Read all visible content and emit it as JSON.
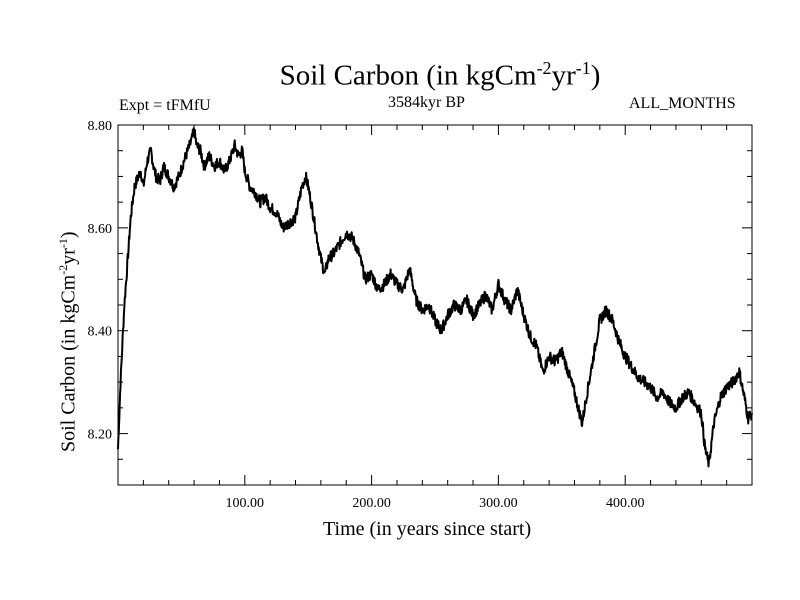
{
  "header": {
    "title_main": "Soil Carbon (in kgCm",
    "title_exp1": "-2",
    "title_mid": "yr",
    "title_exp2": "-1",
    "title_end": ")",
    "experiment": "Expt = tFMfU",
    "subtitle": "3584kyr BP",
    "months": "ALL_MONTHS"
  },
  "axes": {
    "xlabel": "Time (in years since start)",
    "ylabel_main": "Soil Carbon (in kgCm",
    "ylabel_exp1": "-2",
    "ylabel_mid": "yr",
    "ylabel_exp2": "-1",
    "ylabel_end": ")"
  },
  "chart_data": {
    "type": "line",
    "title": "Soil Carbon (in kgCm-2yr-1)",
    "xlabel": "Time (in years since start)",
    "ylabel": "Soil Carbon (in kgCm-2yr-1)",
    "xlim": [
      0,
      500
    ],
    "ylim": [
      8.1,
      8.8
    ],
    "xticks": [
      100,
      200,
      300,
      400
    ],
    "xtick_labels": [
      "100.00",
      "200.00",
      "300.00",
      "400.00"
    ],
    "yticks": [
      8.2,
      8.4,
      8.6,
      8.8
    ],
    "ytick_labels": [
      "8.20",
      "8.40",
      "8.60",
      "8.80"
    ],
    "series": [
      {
        "name": "Soil Carbon",
        "x": [
          0,
          2,
          5,
          8,
          10,
          13,
          16,
          18,
          20,
          23,
          26,
          28,
          30,
          33,
          36,
          40,
          44,
          48,
          52,
          55,
          58,
          60,
          62,
          65,
          68,
          72,
          76,
          80,
          84,
          88,
          92,
          95,
          98,
          100,
          104,
          108,
          112,
          116,
          120,
          125,
          130,
          135,
          140,
          145,
          148,
          150,
          153,
          157,
          160,
          163,
          166,
          170,
          175,
          180,
          185,
          190,
          195,
          200,
          205,
          210,
          215,
          220,
          225,
          230,
          235,
          240,
          245,
          250,
          255,
          260,
          265,
          270,
          275,
          280,
          285,
          290,
          295,
          300,
          305,
          310,
          315,
          320,
          325,
          330,
          335,
          340,
          345,
          350,
          355,
          360,
          363,
          366,
          370,
          375,
          380,
          385,
          390,
          395,
          400,
          405,
          410,
          415,
          420,
          425,
          430,
          435,
          440,
          445,
          450,
          455,
          460,
          463,
          466,
          470,
          475,
          480,
          485,
          490,
          494,
          497,
          500
        ],
        "values": [
          8.17,
          8.3,
          8.45,
          8.55,
          8.62,
          8.68,
          8.7,
          8.71,
          8.68,
          8.73,
          8.75,
          8.72,
          8.7,
          8.69,
          8.72,
          8.7,
          8.68,
          8.7,
          8.73,
          8.75,
          8.77,
          8.79,
          8.76,
          8.75,
          8.72,
          8.74,
          8.72,
          8.73,
          8.71,
          8.73,
          8.76,
          8.74,
          8.75,
          8.71,
          8.68,
          8.67,
          8.65,
          8.66,
          8.64,
          8.63,
          8.6,
          8.61,
          8.62,
          8.68,
          8.7,
          8.68,
          8.64,
          8.58,
          8.54,
          8.51,
          8.54,
          8.55,
          8.57,
          8.59,
          8.58,
          8.55,
          8.5,
          8.51,
          8.48,
          8.49,
          8.51,
          8.49,
          8.48,
          8.52,
          8.46,
          8.44,
          8.45,
          8.42,
          8.4,
          8.43,
          8.45,
          8.44,
          8.46,
          8.43,
          8.45,
          8.47,
          8.44,
          8.49,
          8.46,
          8.44,
          8.48,
          8.43,
          8.39,
          8.37,
          8.32,
          8.35,
          8.34,
          8.36,
          8.32,
          8.28,
          8.25,
          8.22,
          8.28,
          8.35,
          8.42,
          8.44,
          8.42,
          8.38,
          8.35,
          8.33,
          8.31,
          8.3,
          8.29,
          8.27,
          8.28,
          8.26,
          8.25,
          8.27,
          8.28,
          8.26,
          8.24,
          8.17,
          8.14,
          8.22,
          8.27,
          8.29,
          8.3,
          8.32,
          8.27,
          8.23,
          8.24
        ]
      }
    ]
  }
}
